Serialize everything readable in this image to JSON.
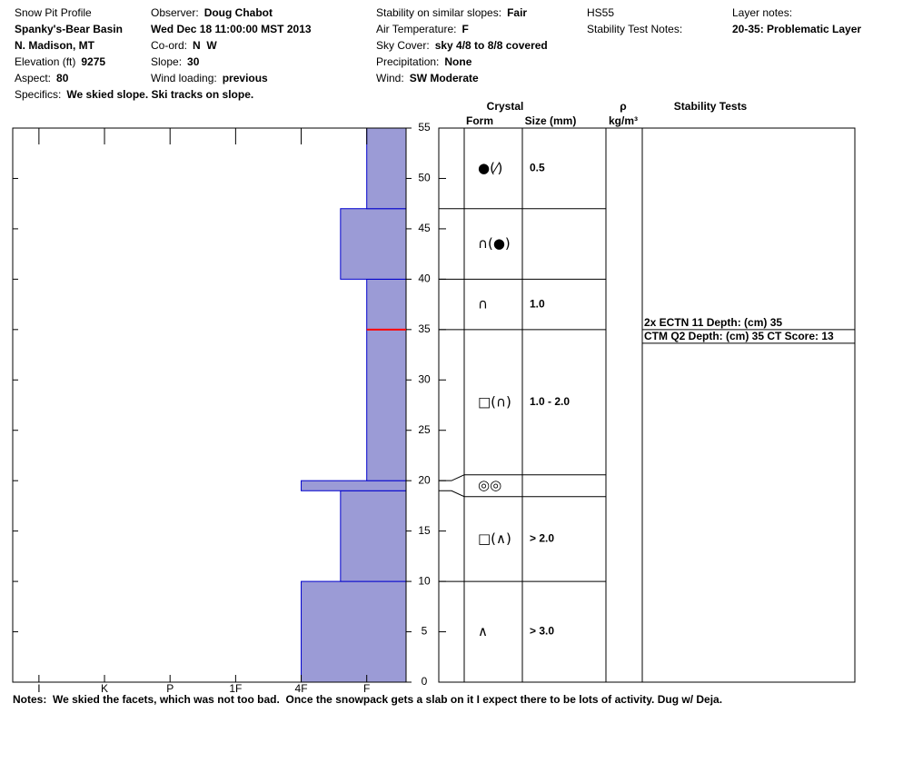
{
  "header": {
    "columns": [
      [
        {
          "label": "Snow Pit Profile"
        },
        {
          "value": "Spanky's-Bear Basin"
        },
        {
          "value": "N. Madison, MT"
        },
        {
          "label": "Elevation (ft)",
          "value": "9275"
        },
        {
          "label": "Aspect:",
          "value": "80"
        },
        {
          "label": "Specifics:",
          "value": "We skied slope. Ski tracks on slope."
        }
      ],
      [
        {
          "label": "Observer:",
          "value": "Doug Chabot"
        },
        {
          "value": "Wed Dec 18 11:00:00 MST 2013"
        },
        {
          "label": "Co-ord:",
          "value": "N  W"
        },
        {
          "label": "Slope:",
          "value": "30"
        },
        {
          "label": "Wind loading:",
          "value": "previous"
        }
      ],
      [
        {
          "label": "Stability on similar slopes:",
          "value": "Fair"
        },
        {
          "label": "Air Temperature:",
          "value": "F"
        },
        {
          "label": "Sky Cover:",
          "value": "sky 4/8 to 8/8 covered"
        },
        {
          "label": "Precipitation:",
          "value": "None"
        },
        {
          "label": "Wind:",
          "value": "SW Moderate"
        }
      ],
      [
        {
          "label": "HS55"
        },
        {
          "label": "Stability Test Notes:"
        }
      ],
      [
        {
          "label": "Layer notes:"
        },
        {
          "value": "20-35: Problematic Layer"
        }
      ]
    ]
  },
  "chart_data": {
    "type": "snow-profile",
    "ylim": [
      0,
      55
    ],
    "yticks": [
      0,
      5,
      10,
      15,
      20,
      25,
      30,
      35,
      40,
      45,
      50,
      55
    ],
    "xlim": [
      6.4,
      0.4
    ],
    "xticks": [
      {
        "value": 6,
        "label": "I"
      },
      {
        "value": 5,
        "label": "K"
      },
      {
        "value": 4,
        "label": "P"
      },
      {
        "value": 3,
        "label": "1F"
      },
      {
        "value": 2,
        "label": "4F"
      },
      {
        "value": 1,
        "label": "F"
      }
    ],
    "color": "#9b9bd6",
    "edge_color": "#0000cc",
    "marker_color": "#ff0000",
    "layers": [
      {
        "bottom": 0,
        "top": 10,
        "hardness": 2,
        "form": "∧",
        "size": "> 3.0"
      },
      {
        "bottom": 10,
        "top": 19,
        "hardness": 1.4,
        "form": "□(∧)",
        "size": "> 2.0"
      },
      {
        "bottom": 19,
        "top": 20,
        "hardness": 2,
        "form": "◎◎"
      },
      {
        "bottom": 20,
        "top": 35,
        "hardness": 1,
        "form": "□(∩)",
        "size": "1.0 - 2.0"
      },
      {
        "bottom": 35,
        "top": 40,
        "hardness": 1,
        "form": "∩",
        "size": "1.0"
      },
      {
        "bottom": 40,
        "top": 47,
        "hardness": 1.4,
        "form": "∩(●)"
      },
      {
        "bottom": 47,
        "top": 55,
        "hardness": 1,
        "form": "●(⁄)",
        "size": "0.5"
      }
    ],
    "columns": {
      "crystal": "Crystal",
      "form": "Form",
      "size": "Size (mm)",
      "density": "ρ",
      "density_unit": "kg/m³"
    },
    "stability_tests": {
      "title": "Stability Tests",
      "depth": 35,
      "results": [
        "2x ECTN 11   Depth: (cm) 35",
        "CTM Q2 Depth: (cm) 35 CT Score: 13"
      ]
    }
  },
  "notes": {
    "label": "Notes:",
    "text": "We skied the facets, which was not too bad.  Once the snowpack gets a slab on it I expect there to be lots of activity. Dug w/ Deja."
  }
}
